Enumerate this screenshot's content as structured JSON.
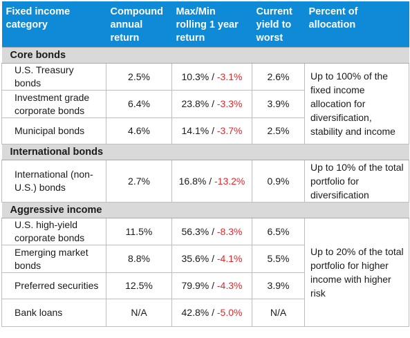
{
  "headers": {
    "category": "Fixed income category",
    "compound": "Compound annual return",
    "maxmin": "Max/Min rolling 1 year return",
    "yield": "Current yield to worst",
    "allocation": "Percent of allocation"
  },
  "colors": {
    "header_bg": "#0f8ad6",
    "section_bg": "#d9d9d9",
    "negative_text": "#e0282d"
  },
  "sections": [
    {
      "name": "Core bonds",
      "allocation": "Up to 100% of the fixed income allocation for diversification, stability and income",
      "rows": [
        {
          "category": "U.S. Treasury bonds",
          "compound": "2.5%",
          "max": "10.3%",
          "min": "-3.1%",
          "yield": "2.6%"
        },
        {
          "category": "Investment grade corporate bonds",
          "compound": "6.4%",
          "max": "23.8%",
          "min": "-3.3%",
          "yield": "3.9%"
        },
        {
          "category": "Municipal bonds",
          "compound": "4.6%",
          "max": "14.1%",
          "min": "-3.7%",
          "yield": "2.5%"
        }
      ]
    },
    {
      "name": "International bonds",
      "allocation": "Up to 10% of the total portfolio for diversification",
      "rows": [
        {
          "category": "International (non-U.S.) bonds",
          "compound": "2.7%",
          "max": "16.8%",
          "min": "-13.2%",
          "yield": "0.9%"
        }
      ]
    },
    {
      "name": "Aggressive income",
      "allocation": "Up to 20% of the total portfolio for higher income with higher risk",
      "rows": [
        {
          "category": "U.S. high-yield corporate bonds",
          "compound": "11.5%",
          "max": "56.3%",
          "min": "-8.3%",
          "yield": "6.5%"
        },
        {
          "category": "Emerging market bonds",
          "compound": "8.8%",
          "max": "35.6%",
          "min": "-4.1%",
          "yield": "5.5%"
        },
        {
          "category": "Preferred securities",
          "compound": "12.5%",
          "max": "79.9%",
          "min": "-4.3%",
          "yield": "3.9%"
        },
        {
          "category": "Bank loans",
          "compound": "N/A",
          "max": "42.8%",
          "min": "-5.0%",
          "yield": "N/A"
        }
      ]
    }
  ]
}
